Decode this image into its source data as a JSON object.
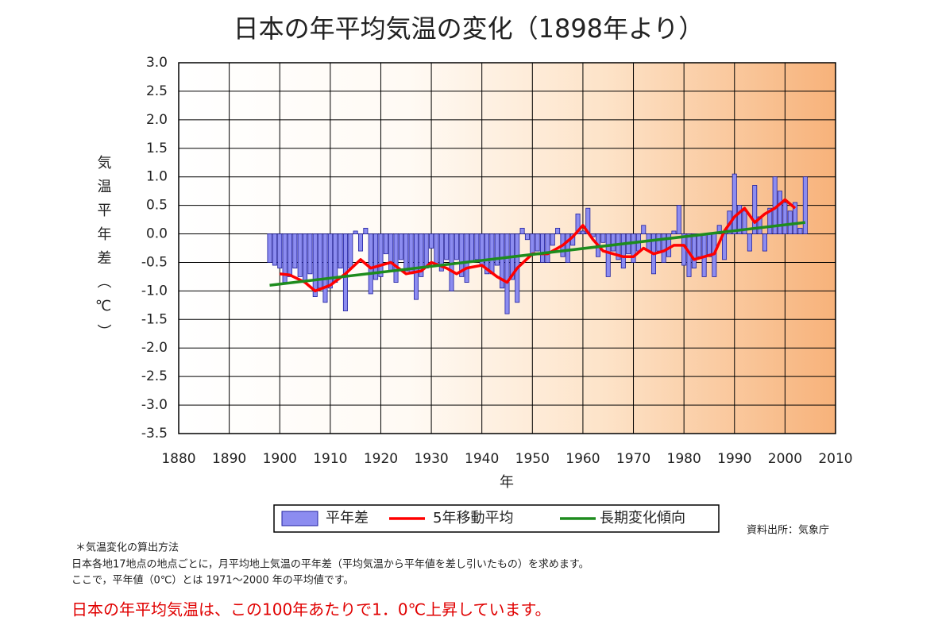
{
  "chart_data": {
    "type": "bar",
    "title": "日本の年平均気温の変化（1898年より）",
    "ylabel": "気温平年差（℃）",
    "xlabel": "年",
    "xlim": [
      1880,
      2010
    ],
    "xticks": [
      1880,
      1890,
      1900,
      1910,
      1920,
      1930,
      1940,
      1950,
      1960,
      1970,
      1980,
      1990,
      2000,
      2010
    ],
    "ylim": [
      -3.5,
      3
    ],
    "yticks": [
      {
        "value": -3.5,
        "label": "-3.5"
      },
      {
        "value": -3,
        "label": "-3.0"
      },
      {
        "value": -2.5,
        "label": "-2.5"
      },
      {
        "value": -2,
        "label": "-2.0"
      },
      {
        "value": -1.5,
        "label": "-1.5"
      },
      {
        "value": -1,
        "label": "-1.0"
      },
      {
        "value": -0.5,
        "label": "-0.5"
      },
      {
        "value": 0,
        "label": "0.0"
      },
      {
        "value": 0.5,
        "label": "0.5"
      },
      {
        "value": 1,
        "label": "1.0"
      },
      {
        "value": 1.5,
        "label": "1.5"
      },
      {
        "value": 2,
        "label": "2.0"
      },
      {
        "value": 2.5,
        "label": "2.5"
      },
      {
        "value": 3,
        "label": "3.0"
      }
    ],
    "grid": true,
    "series": [
      {
        "name": "平年差",
        "type": "bar",
        "color": "#8c8cf0",
        "x": [
          1898,
          1899,
          1900,
          1901,
          1902,
          1903,
          1904,
          1905,
          1906,
          1907,
          1908,
          1909,
          1910,
          1911,
          1912,
          1913,
          1914,
          1915,
          1916,
          1917,
          1918,
          1919,
          1920,
          1921,
          1922,
          1923,
          1924,
          1925,
          1926,
          1927,
          1928,
          1929,
          1930,
          1931,
          1932,
          1933,
          1934,
          1935,
          1936,
          1937,
          1938,
          1939,
          1940,
          1941,
          1942,
          1943,
          1944,
          1945,
          1946,
          1947,
          1948,
          1949,
          1950,
          1951,
          1952,
          1953,
          1954,
          1955,
          1956,
          1957,
          1958,
          1959,
          1960,
          1961,
          1962,
          1963,
          1964,
          1965,
          1966,
          1967,
          1968,
          1969,
          1970,
          1971,
          1972,
          1973,
          1974,
          1975,
          1976,
          1977,
          1978,
          1979,
          1980,
          1981,
          1982,
          1983,
          1984,
          1985,
          1986,
          1987,
          1988,
          1989,
          1990,
          1991,
          1992,
          1993,
          1994,
          1995,
          1996,
          1997,
          1998,
          1999,
          2000,
          2001,
          2002,
          2003,
          2004
        ],
        "values": [
          -0.5,
          -0.55,
          -0.6,
          -0.85,
          -0.75,
          -0.6,
          -0.75,
          -0.85,
          -0.7,
          -1.1,
          -0.95,
          -1.2,
          -0.95,
          -0.85,
          -0.6,
          -1.35,
          -0.6,
          0.05,
          -0.3,
          0.1,
          -1.05,
          -0.8,
          -0.75,
          -0.35,
          -0.65,
          -0.85,
          -0.45,
          -0.65,
          -0.7,
          -1.15,
          -0.75,
          -0.6,
          -0.25,
          -0.55,
          -0.65,
          -0.45,
          -1.0,
          -0.45,
          -0.75,
          -0.85,
          -0.5,
          -0.45,
          -0.55,
          -0.7,
          -0.7,
          -0.55,
          -0.95,
          -1.4,
          -0.8,
          -1.2,
          0.1,
          -0.1,
          -0.35,
          -0.3,
          -0.5,
          -0.5,
          -0.2,
          0.1,
          -0.4,
          -0.5,
          -0.2,
          0.35,
          0.05,
          0.45,
          -0.05,
          -0.4,
          -0.15,
          -0.75,
          -0.3,
          -0.45,
          -0.6,
          -0.35,
          -0.5,
          -0.3,
          0.15,
          -0.3,
          -0.7,
          -0.3,
          -0.5,
          -0.4,
          0.05,
          0.5,
          -0.55,
          -0.75,
          -0.6,
          -0.4,
          -0.75,
          -0.4,
          -0.75,
          0.15,
          -0.45,
          0.4,
          1.05,
          0.5,
          0.4,
          -0.3,
          0.85,
          0.3,
          -0.3,
          0.45,
          1.0,
          0.75,
          0.55,
          0.4,
          0.55,
          0.1,
          1.0
        ]
      },
      {
        "name": "5年移動平均",
        "type": "line",
        "color": "#ff0000",
        "x": [
          1900,
          1902,
          1905,
          1907,
          1910,
          1913,
          1916,
          1918,
          1920,
          1922,
          1925,
          1928,
          1930,
          1933,
          1935,
          1937,
          1940,
          1943,
          1945,
          1947,
          1950,
          1953,
          1956,
          1958,
          1960,
          1962,
          1964,
          1966,
          1968,
          1970,
          1972,
          1974,
          1976,
          1978,
          1980,
          1982,
          1984,
          1986,
          1988,
          1990,
          1992,
          1994,
          1996,
          1998,
          2000,
          2002
        ],
        "values": [
          -0.7,
          -0.72,
          -0.85,
          -1.0,
          -0.9,
          -0.7,
          -0.45,
          -0.6,
          -0.55,
          -0.5,
          -0.7,
          -0.65,
          -0.5,
          -0.6,
          -0.7,
          -0.6,
          -0.55,
          -0.75,
          -0.85,
          -0.6,
          -0.35,
          -0.35,
          -0.2,
          -0.05,
          0.15,
          -0.1,
          -0.3,
          -0.35,
          -0.4,
          -0.4,
          -0.25,
          -0.35,
          -0.3,
          -0.2,
          -0.2,
          -0.45,
          -0.4,
          -0.35,
          0.05,
          0.3,
          0.45,
          0.2,
          0.35,
          0.45,
          0.6,
          0.45
        ]
      },
      {
        "name": "長期変化傾向",
        "type": "line",
        "color": "#1e8c1e",
        "x": [
          1898,
          2004
        ],
        "values": [
          -0.9,
          0.2
        ]
      }
    ],
    "source": "資料出所：気象庁",
    "notes": [
      "＊気温変化の算出方法",
      "日本各地17地点の地点ごとに，月平均地上気温の平年差（平均気温から平年値を差し引いたもの）を求めます。",
      "ここで，平年値（0℃）とは 1971～2000 年の平均値です。"
    ],
    "conclusion": "日本の年平均気温は、この100年あたりで1．0℃上昇しています。"
  }
}
